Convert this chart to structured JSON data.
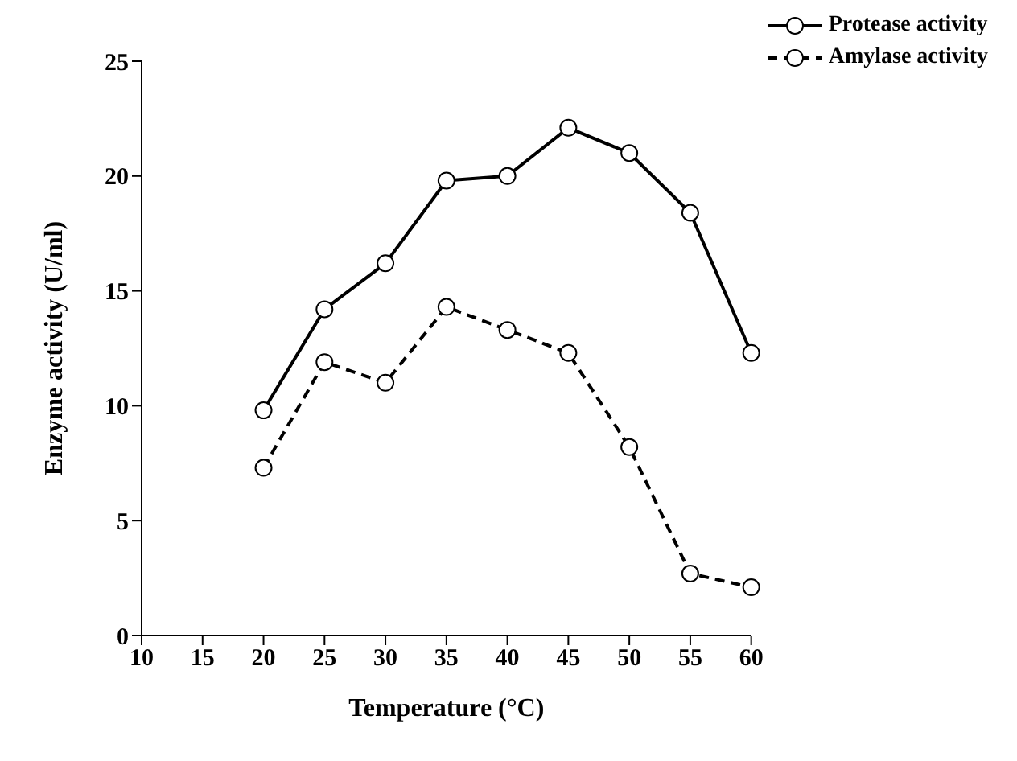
{
  "chart_data": {
    "type": "line",
    "xlabel": "Temperature (°C)",
    "ylabel": "Enzyme activity (U/ml)",
    "x": [
      20,
      25,
      30,
      35,
      40,
      45,
      50,
      55,
      60
    ],
    "series": [
      {
        "name": "Protease activity",
        "color": "#000000",
        "line_style": "solid",
        "values": [
          9.8,
          14.2,
          16.2,
          19.8,
          20.0,
          22.1,
          21.0,
          18.4,
          12.3
        ]
      },
      {
        "name": "Amylase activity",
        "color": "#000000",
        "line_style": "dashed",
        "values": [
          7.3,
          11.9,
          11.0,
          14.3,
          13.3,
          12.3,
          8.2,
          2.7,
          2.1
        ]
      }
    ],
    "xlim": [
      10,
      60
    ],
    "xticks": [
      10,
      15,
      20,
      25,
      30,
      35,
      40,
      45,
      50,
      55,
      60
    ],
    "ylim": [
      0,
      25
    ],
    "yticks": [
      0,
      5,
      10,
      15,
      20,
      25
    ],
    "grid": false,
    "legend": "top right",
    "marker": "circle"
  }
}
